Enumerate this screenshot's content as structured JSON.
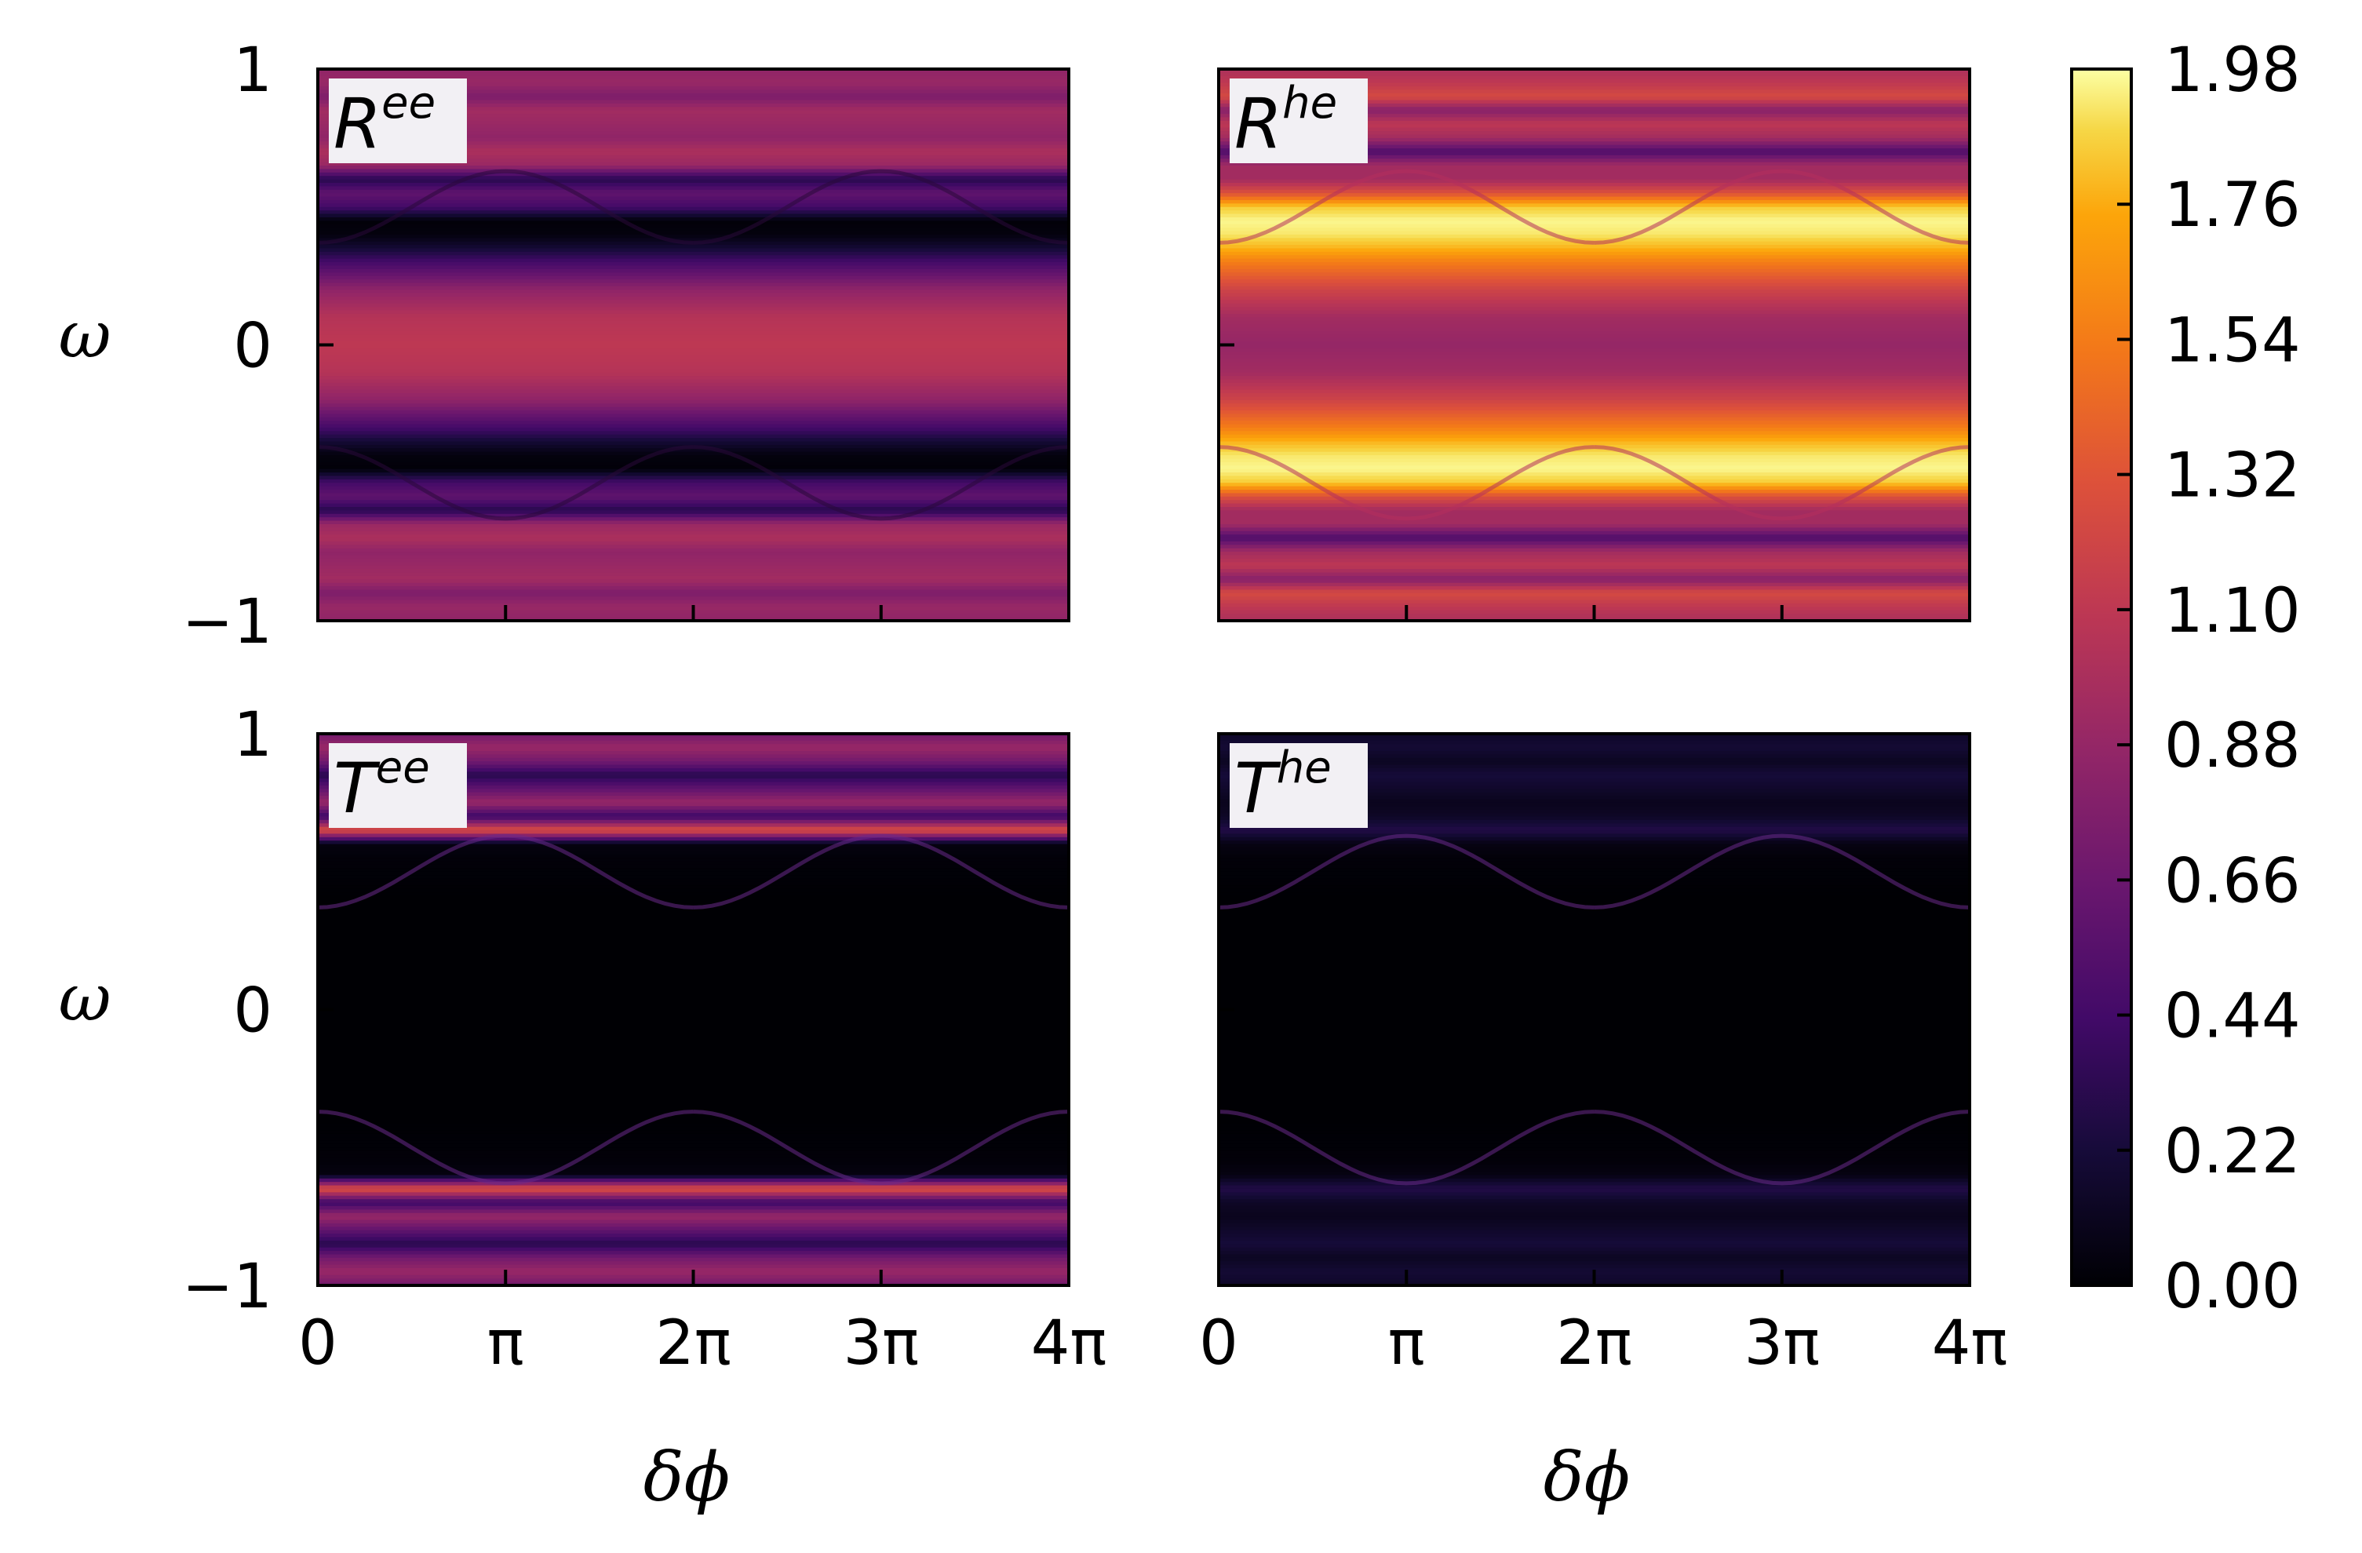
{
  "chart_data": {
    "type": "heatmap",
    "colormap": "inferno",
    "x_quantity": "delta_phi (radians)",
    "y_quantity": "omega",
    "xlim": [
      0,
      12.566
    ],
    "ylim": [
      -1,
      1
    ],
    "x_ticks": [
      0,
      3.1416,
      6.2832,
      9.4248,
      12.566
    ],
    "x_tick_labels": [
      "0",
      "π",
      "2π",
      "3π",
      "4π"
    ],
    "y_ticks": [
      -1,
      0,
      1
    ],
    "y_tick_labels": [
      "−1",
      "0",
      "1"
    ],
    "xlabel": "δϕ",
    "ylabel": "ω",
    "colorbar": {
      "min": 0.0,
      "max": 1.98,
      "ticks": [
        0.0,
        0.22,
        0.44,
        0.66,
        0.88,
        1.1,
        1.32,
        1.54,
        1.76,
        1.98
      ],
      "tick_labels": [
        "0.00",
        "0.22",
        "0.44",
        "0.66",
        "0.88",
        "1.10",
        "1.32",
        "1.54",
        "1.76",
        "1.98"
      ]
    },
    "panels": [
      {
        "id": "Ree",
        "label_base": "R",
        "label_sup": "ee",
        "profile_omega": [
          0,
          0.1,
          0.2,
          0.3,
          0.35,
          0.4,
          0.45,
          0.5,
          0.55,
          0.6,
          0.65,
          0.7,
          0.75,
          0.8,
          0.85,
          0.9,
          0.95,
          1.0
        ],
        "profile_value": [
          1.1,
          1.05,
          0.85,
          0.45,
          0.2,
          0.04,
          0.02,
          0.45,
          0.6,
          0.3,
          0.9,
          1.0,
          0.85,
          0.9,
          0.95,
          0.75,
          0.9,
          0.85
        ]
      },
      {
        "id": "Rhe",
        "label_base": "R",
        "label_sup": "he",
        "profile_omega": [
          0,
          0.1,
          0.2,
          0.3,
          0.35,
          0.4,
          0.45,
          0.5,
          0.55,
          0.6,
          0.65,
          0.7,
          0.75,
          0.8,
          0.85,
          0.9,
          0.95,
          1.0
        ],
        "profile_value": [
          0.88,
          0.95,
          1.2,
          1.55,
          1.78,
          1.92,
          1.96,
          1.85,
          1.3,
          0.95,
          0.95,
          0.5,
          0.95,
          1.1,
          0.8,
          1.25,
          1.1,
          1.0
        ]
      },
      {
        "id": "Tee",
        "label_base": "T",
        "label_sup": "ee",
        "profile_omega": [
          0,
          0.2,
          0.4,
          0.55,
          0.6,
          0.65,
          0.7,
          0.75,
          0.8,
          0.85,
          0.9,
          0.95,
          1.0
        ],
        "profile_value": [
          0.0,
          0.0,
          0.0,
          0.02,
          0.05,
          1.3,
          0.4,
          0.9,
          0.6,
          0.3,
          0.7,
          0.9,
          0.7
        ]
      },
      {
        "id": "The",
        "label_base": "T",
        "label_sup": "he",
        "profile_omega": [
          0,
          0.2,
          0.4,
          0.55,
          0.6,
          0.65,
          0.7,
          0.75,
          0.8,
          0.85,
          0.9,
          0.95,
          1.0
        ],
        "profile_value": [
          0.0,
          0.0,
          0.0,
          0.02,
          0.06,
          0.28,
          0.14,
          0.1,
          0.16,
          0.22,
          0.12,
          0.2,
          0.15
        ]
      }
    ]
  }
}
